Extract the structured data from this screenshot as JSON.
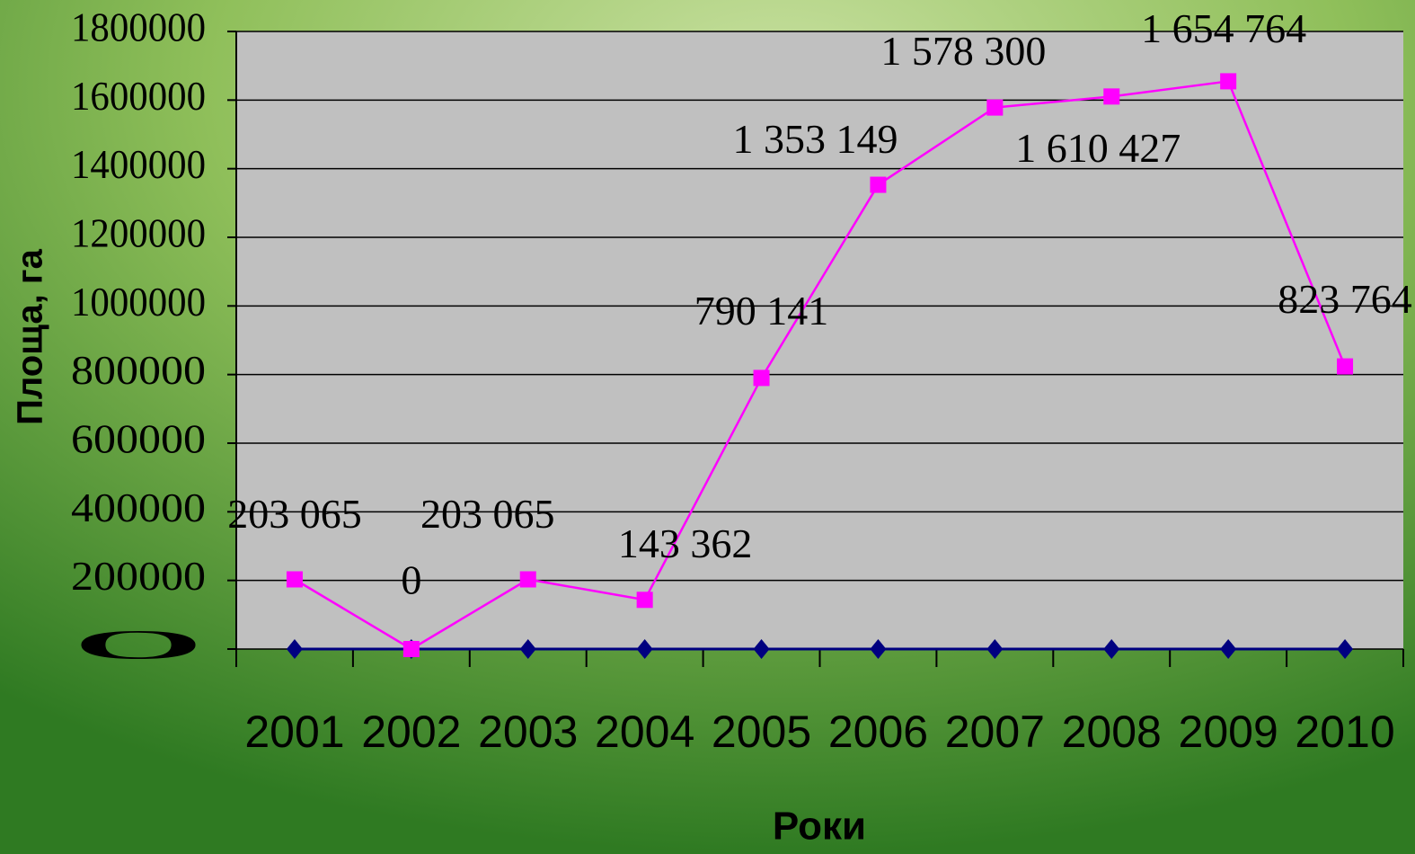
{
  "chart_data": {
    "type": "line",
    "x_label": "Роки",
    "y_label": "Площа, га",
    "categories": [
      "2001",
      "2002",
      "2003",
      "2004",
      "2005",
      "2006",
      "2007",
      "2008",
      "2009",
      "2010"
    ],
    "series": [
      {
        "color": "#ff00ff",
        "marker": "square",
        "values": [
          203065,
          0,
          203065,
          143362,
          790141,
          1353149,
          1578300,
          1610427,
          1654764,
          823764
        ],
        "value_labels": [
          "203 065",
          "0",
          "203 065",
          "143 362",
          "790 141",
          "1 353 149",
          "1 578 300",
          "1 610 427",
          "1 654 764",
          "823 764"
        ]
      },
      {
        "color": "#000080",
        "marker": "diamond",
        "values": [
          0,
          0,
          0,
          0,
          0,
          0,
          0,
          0,
          0,
          0
        ]
      }
    ],
    "ylim": [
      0,
      1800000
    ],
    "yticks": [
      0,
      200000,
      400000,
      600000,
      800000,
      1000000,
      1200000,
      1400000,
      1600000,
      1800000
    ],
    "grid": true
  }
}
